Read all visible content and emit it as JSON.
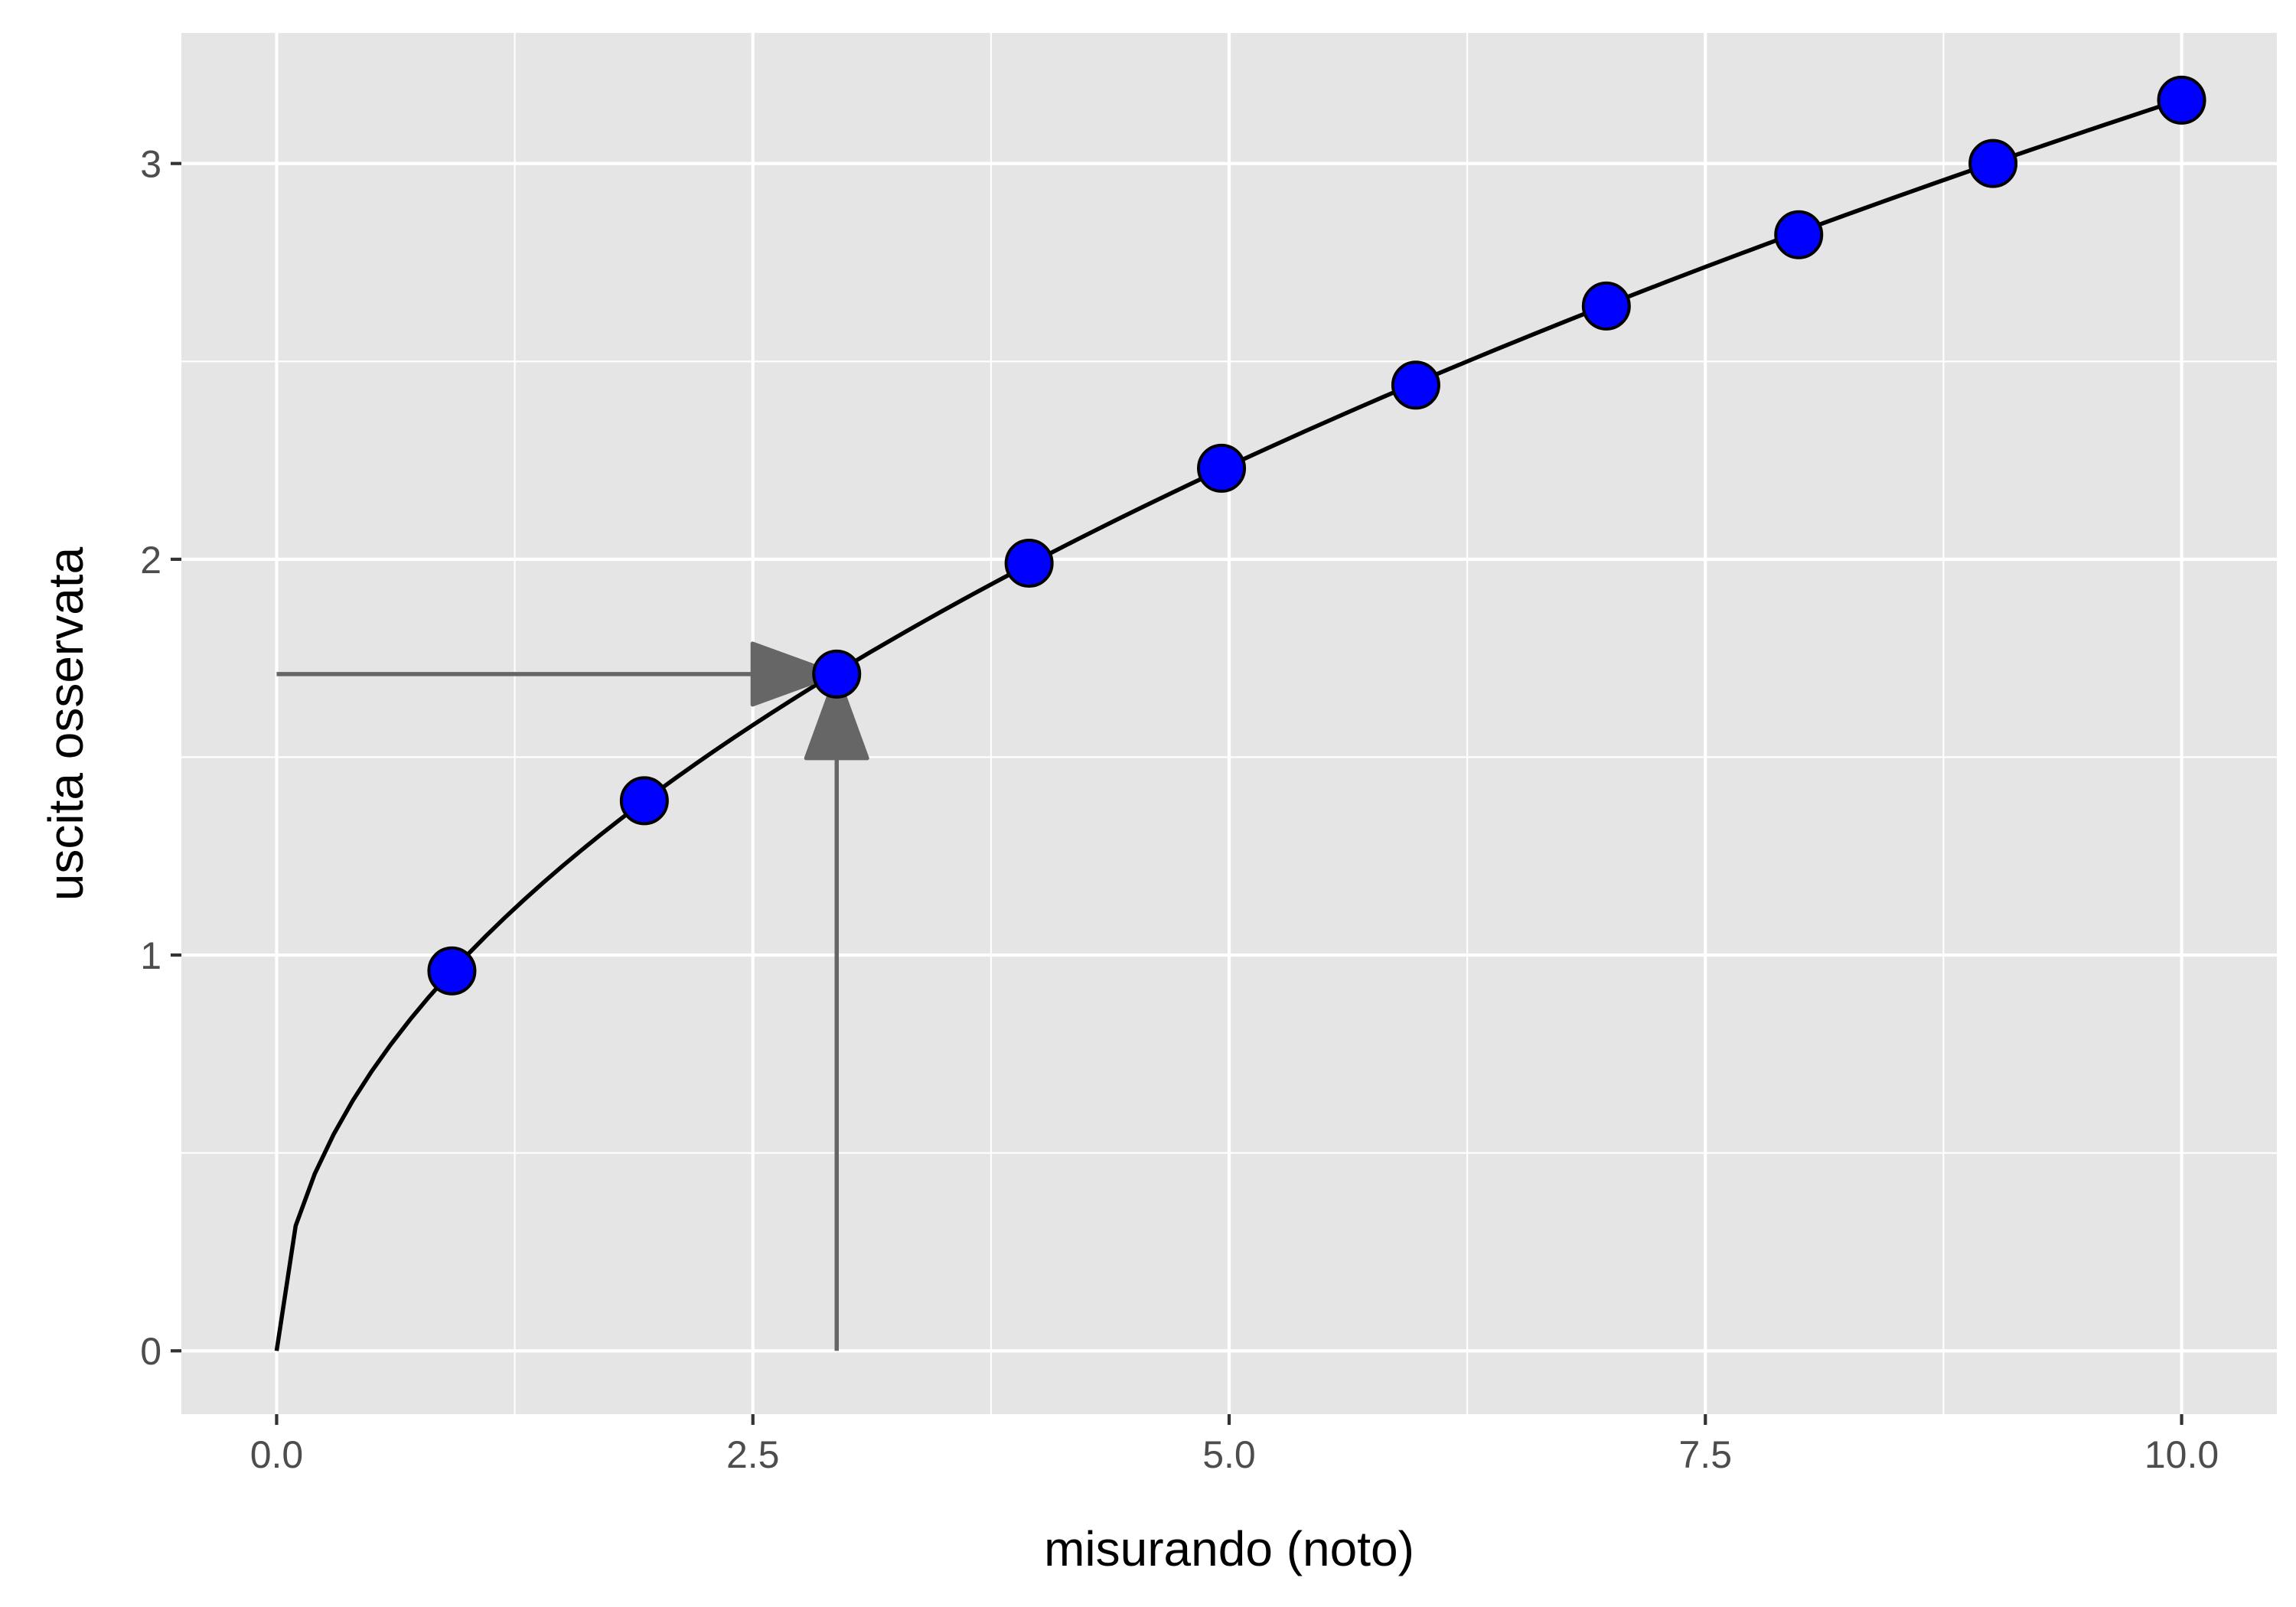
{
  "chart_data": {
    "type": "scatter",
    "title": "",
    "xlabel": "misurando (noto)",
    "ylabel": "uscita osservata",
    "xlim": [
      -0.5,
      10.5
    ],
    "ylim": [
      -0.16,
      3.33
    ],
    "x_ticks": [
      {
        "value": 0.0,
        "label": "0.0"
      },
      {
        "value": 2.5,
        "label": "2.5"
      },
      {
        "value": 5.0,
        "label": "5.0"
      },
      {
        "value": 7.5,
        "label": "7.5"
      },
      {
        "value": 10.0,
        "label": "10.0"
      }
    ],
    "y_ticks": [
      {
        "value": 0,
        "label": "0"
      },
      {
        "value": 1,
        "label": "1"
      },
      {
        "value": 2,
        "label": "2"
      },
      {
        "value": 3,
        "label": "3"
      }
    ],
    "grid": true,
    "legend": "none",
    "series": [
      {
        "kind": "points",
        "color": "#0000ff",
        "x": [
          0.92,
          1.93,
          2.94,
          3.95,
          4.96,
          5.98,
          6.98,
          7.99,
          9.01,
          10.0
        ],
        "y": [
          0.96,
          1.39,
          1.71,
          1.99,
          2.23,
          2.44,
          2.64,
          2.82,
          3.0,
          3.16
        ]
      },
      {
        "kind": "line",
        "color": "#000000",
        "function": "sqrt(x)",
        "x_range": [
          0,
          10
        ]
      }
    ],
    "annotations": [
      {
        "type": "arrow",
        "color": "#666666",
        "from": [
          0,
          1.71
        ],
        "to": [
          2.94,
          1.71
        ]
      },
      {
        "type": "arrow",
        "color": "#666666",
        "from": [
          2.94,
          0
        ],
        "to": [
          2.94,
          1.71
        ]
      }
    ]
  }
}
